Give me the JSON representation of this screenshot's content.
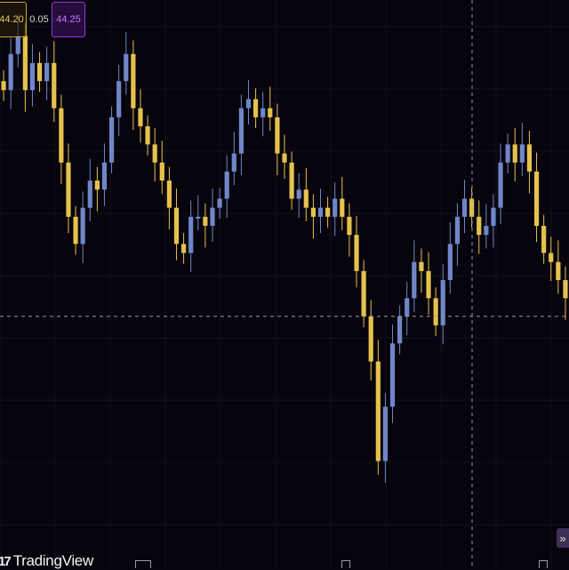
{
  "header": {
    "bid_price": "44.20",
    "spread": "0.05",
    "ask_price": "44.25"
  },
  "branding": {
    "logo_mark": "17",
    "logo_text": "TradingView"
  },
  "controls": {
    "scroll_right_glyph": "»"
  },
  "colors": {
    "background": "#07040d",
    "up_candle": "#6f87c8",
    "down_candle": "#e5c24e",
    "crosshair": "#9a9aa6",
    "bid_accent": "#c6a13f",
    "ask_accent": "#8e3bd6"
  },
  "chart_data": {
    "type": "candlestick",
    "title": "",
    "xlabel": "",
    "ylabel": "",
    "crosshair_price": 44.05,
    "ylim": [
      43.8,
      44.38
    ],
    "grid": true,
    "legend": "none",
    "series": [
      {
        "values": [
          44.3,
          44.34,
          44.36,
          44.3,
          44.33,
          44.31,
          44.33,
          44.28,
          44.22,
          44.16,
          44.13,
          44.17,
          44.2,
          44.19,
          44.22,
          44.27,
          44.31,
          44.34,
          44.28,
          44.26,
          44.24,
          44.22,
          44.2,
          44.17,
          44.13,
          44.12,
          44.16,
          44.16,
          44.15,
          44.17,
          44.18,
          44.21,
          44.23,
          44.28,
          44.29,
          44.27,
          44.28,
          44.27,
          44.23,
          44.22,
          44.18,
          44.19,
          44.17,
          44.16,
          44.17,
          44.16,
          44.18,
          44.16,
          44.14,
          44.1,
          44.05,
          44.0,
          43.89,
          43.95,
          44.02,
          44.05,
          44.07,
          44.11,
          44.1,
          44.07,
          44.04,
          44.09,
          44.13,
          44.16,
          44.18,
          44.16,
          44.14,
          44.15,
          44.17,
          44.22,
          44.24,
          44.22,
          44.24,
          44.21,
          44.15,
          44.12,
          44.11,
          44.09,
          44.07
        ]
      }
    ]
  }
}
